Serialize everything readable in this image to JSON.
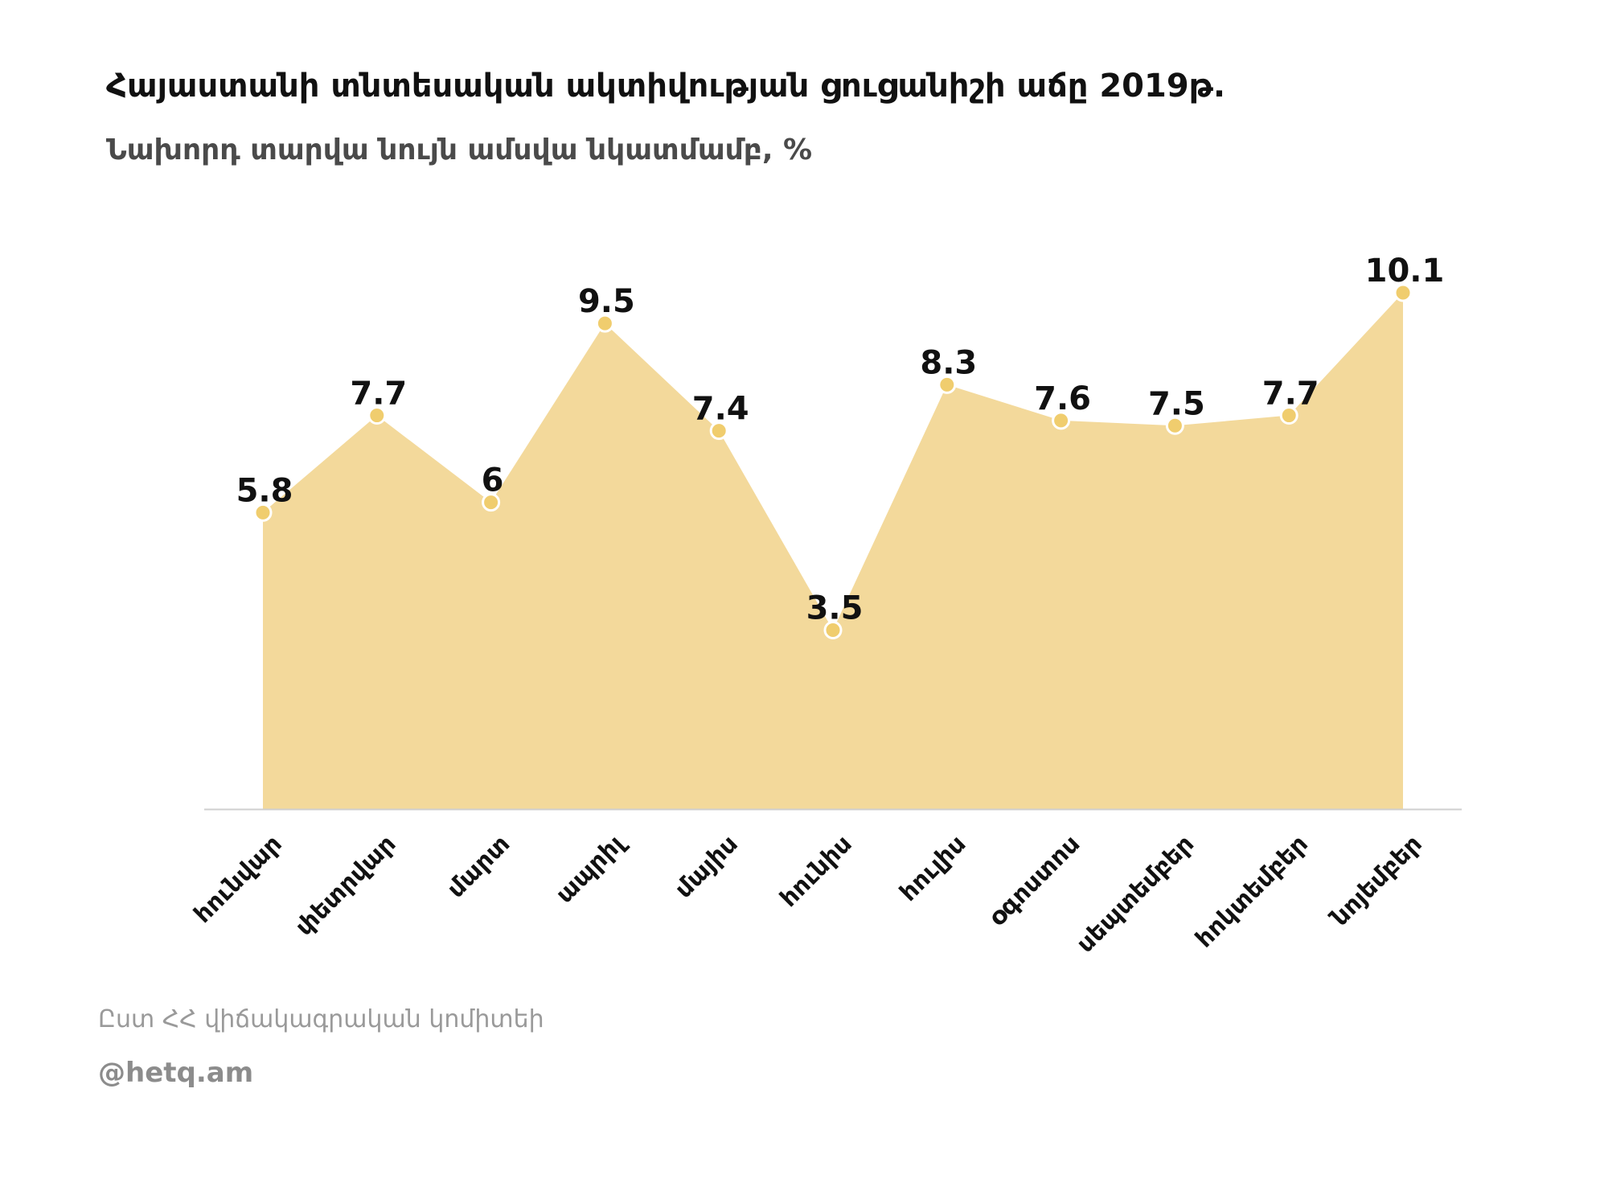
{
  "title": "Հայաստանի տնտեսական ակտիվության ցուցանիշի աճը 2019թ.",
  "subtitle": "Նախորդ տարվա նույն ամսվա նկատմամբ, %",
  "source": "Ըստ ՀՀ վիճակագրական կոմիտեի",
  "brand": "@hetq.am",
  "colors": {
    "area_fill": "#f3d99b",
    "marker_fill": "#f0cd6e",
    "marker_stroke": "#ffffff",
    "baseline": "#cfcfcf",
    "label_text": "#111111"
  },
  "chart_data": {
    "type": "area",
    "categories": [
      "հունվար",
      "փետրվար",
      "մարտ",
      "ապրիլ",
      "մայիս",
      "հունիս",
      "հուլիս",
      "օգոստոս",
      "սեպտեմբեր",
      "հոկտեմբեր",
      "նոյեմբեր"
    ],
    "values": [
      5.8,
      7.7,
      6,
      9.5,
      7.4,
      3.5,
      8.3,
      7.6,
      7.5,
      7.7,
      10.1
    ],
    "data_labels": [
      "5.8",
      "7.7",
      "6",
      "9.5",
      "7.4",
      "3.5",
      "8.3",
      "7.6",
      "7.5",
      "7.7",
      "10.1"
    ],
    "ylim": [
      0,
      10.1
    ],
    "xlabel": "",
    "ylabel": "",
    "grid": false,
    "legend": false
  }
}
